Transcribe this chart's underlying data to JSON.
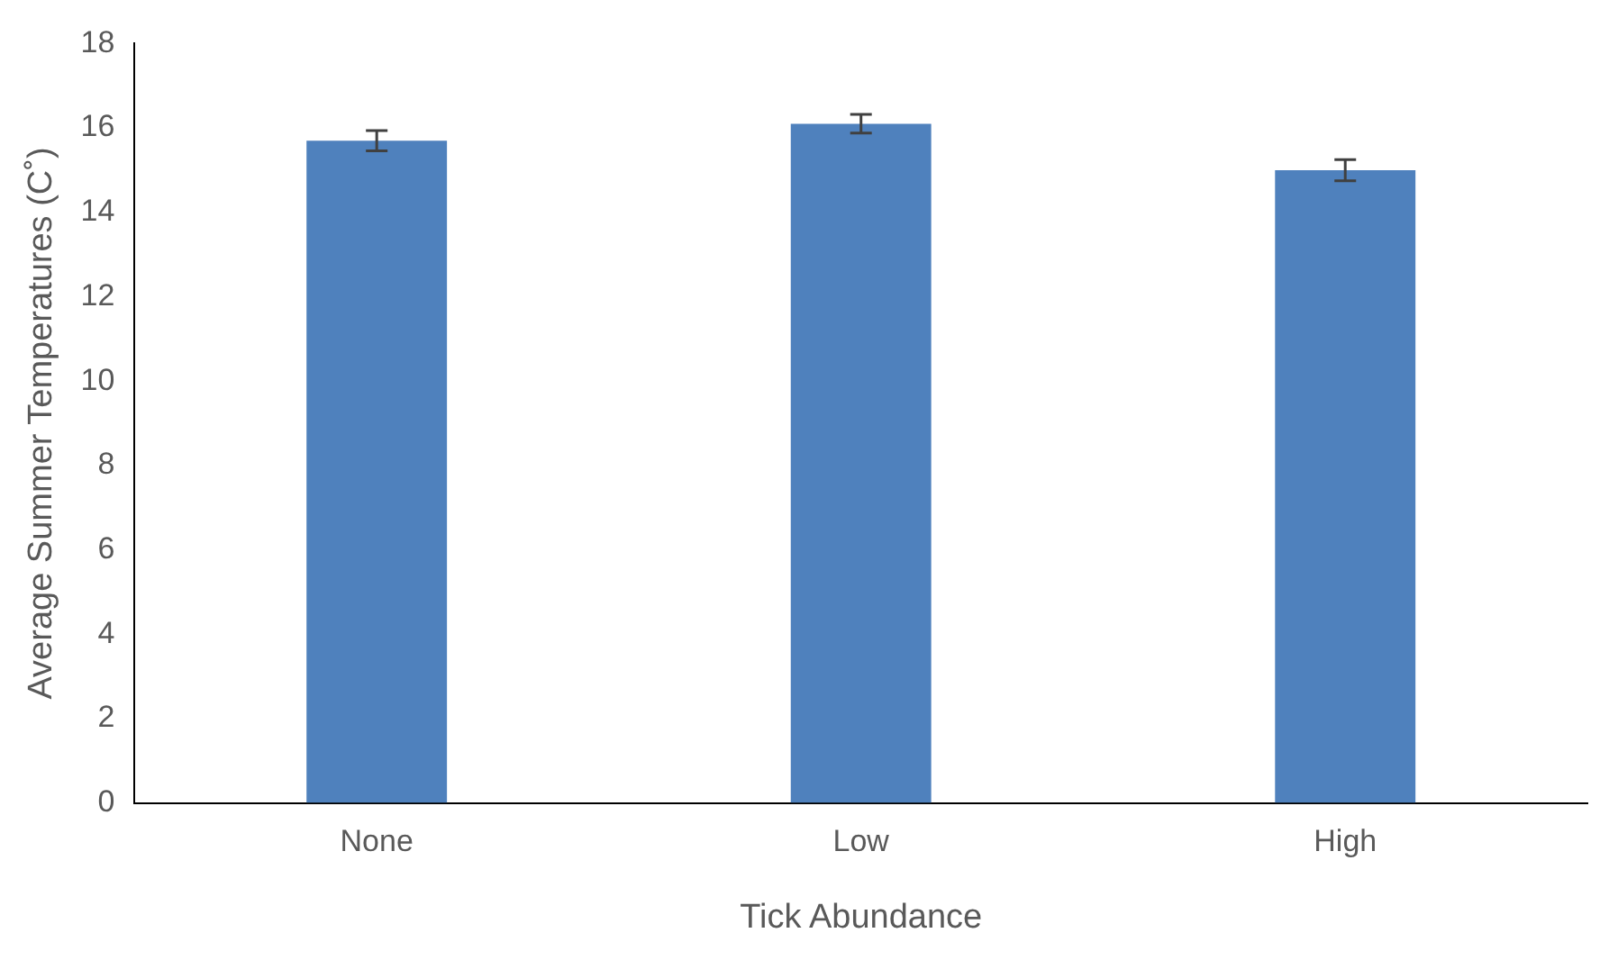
{
  "chart_data": {
    "type": "bar",
    "xlabel": "Tick Abundance",
    "ylabel": "Average Summer Temperatures (C˚)",
    "categories": [
      "None",
      "Low",
      "High"
    ],
    "values": [
      15.7,
      16.1,
      15.0
    ],
    "errors": [
      0.24,
      0.22,
      0.25
    ],
    "color": "#4f81bd",
    "ylim": [
      0,
      18
    ],
    "yticks": [
      0,
      2,
      4,
      6,
      8,
      10,
      12,
      14,
      16,
      18
    ],
    "grid": false
  }
}
